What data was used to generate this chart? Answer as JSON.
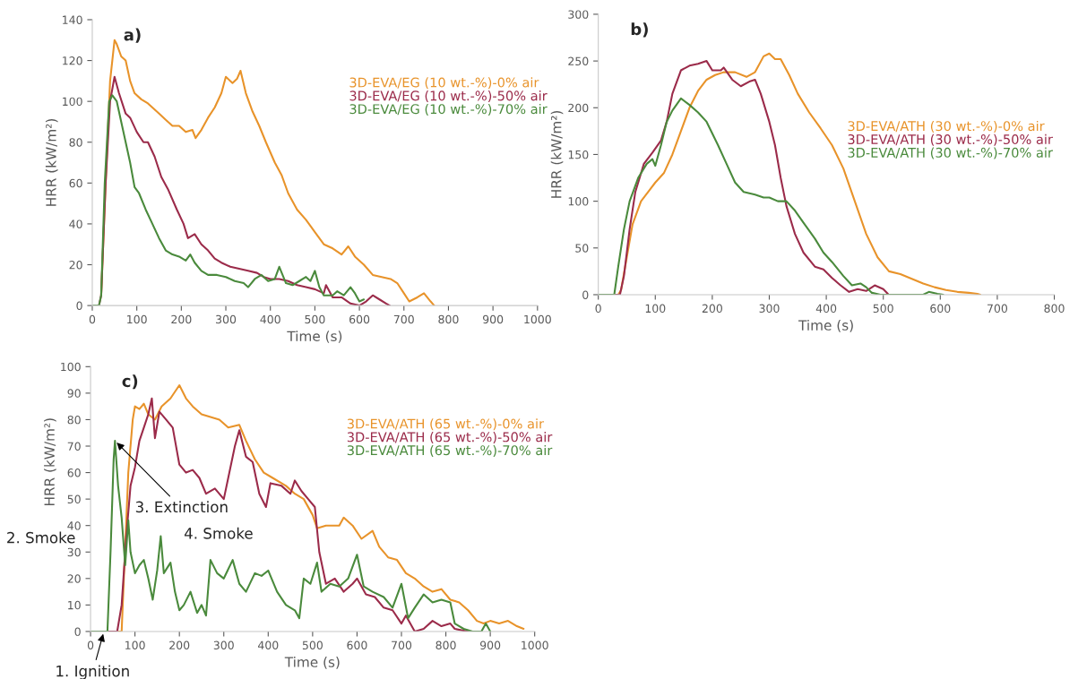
{
  "chart_data": [
    {
      "type": "line",
      "title": "a)",
      "xlabel": "Time (s)",
      "ylabel": "HRR (kW/m²)",
      "xlim": [
        0,
        1000
      ],
      "xticks": [
        0,
        100,
        200,
        300,
        400,
        500,
        600,
        700,
        800,
        900,
        1000
      ],
      "ylim": [
        0,
        140
      ],
      "yticks": [
        0,
        20,
        40,
        60,
        80,
        100,
        120,
        140
      ],
      "grid": false,
      "legend": "right",
      "series": [
        {
          "name": "3D-EVA/EG (10 wt.-%)-0% air",
          "color": "#e8932a",
          "x": [
            20,
            30,
            40,
            50,
            55,
            65,
            75,
            85,
            95,
            110,
            125,
            140,
            150,
            165,
            180,
            195,
            210,
            225,
            232,
            245,
            260,
            275,
            290,
            300,
            315,
            325,
            333,
            345,
            360,
            375,
            390,
            410,
            425,
            440,
            460,
            480,
            500,
            520,
            540,
            560,
            575,
            590,
            610,
            630,
            650,
            670,
            685,
            700,
            712,
            730,
            745,
            760,
            768
          ],
          "values": [
            5,
            60,
            110,
            130,
            128,
            122,
            120,
            110,
            104,
            101,
            99,
            96,
            94,
            91,
            88,
            88,
            85,
            86,
            82,
            86,
            92,
            97,
            104,
            112,
            109,
            111,
            115,
            104,
            95,
            88,
            80,
            70,
            64,
            55,
            47,
            42,
            36,
            30,
            28,
            25,
            29,
            24,
            20,
            15,
            14,
            13,
            11,
            6,
            2,
            4,
            6,
            2,
            0
          ]
        },
        {
          "name": "3D-EVA/EG (10 wt.-%)-50% air",
          "color": "#9b2b4a",
          "x": [
            0,
            15,
            20,
            30,
            40,
            50,
            60,
            75,
            85,
            100,
            115,
            125,
            140,
            155,
            170,
            190,
            205,
            215,
            230,
            245,
            260,
            275,
            290,
            310,
            330,
            350,
            370,
            385,
            400,
            420,
            440,
            460,
            480,
            500,
            520,
            525,
            540,
            560,
            580,
            600,
            615,
            630,
            645,
            660,
            668
          ],
          "values": [
            0,
            0,
            5,
            60,
            100,
            112,
            104,
            94,
            92,
            85,
            80,
            80,
            73,
            63,
            57,
            47,
            40,
            33,
            35,
            30,
            27,
            23,
            21,
            19,
            18,
            17,
            16,
            14,
            13,
            13,
            12,
            10,
            9,
            8,
            6,
            10,
            4,
            4,
            1,
            0,
            2,
            5,
            3,
            1,
            0
          ]
        },
        {
          "name": "3D-EVA/EG (10 wt.-%)-70% air",
          "color": "#4a8a3c",
          "x": [
            0,
            15,
            20,
            28,
            38,
            45,
            55,
            65,
            75,
            85,
            95,
            105,
            120,
            135,
            150,
            165,
            180,
            195,
            210,
            220,
            230,
            245,
            260,
            280,
            300,
            320,
            340,
            350,
            365,
            380,
            395,
            410,
            420,
            435,
            450,
            465,
            480,
            490,
            500,
            510,
            520,
            540,
            550,
            565,
            580,
            590,
            600,
            610
          ],
          "values": [
            0,
            0,
            5,
            60,
            100,
            103,
            100,
            90,
            80,
            70,
            58,
            55,
            47,
            40,
            33,
            27,
            25,
            24,
            22,
            25,
            21,
            17,
            15,
            15,
            14,
            12,
            11,
            9,
            13,
            15,
            12,
            13,
            19,
            11,
            10,
            12,
            14,
            12,
            17,
            9,
            5,
            5,
            7,
            5,
            9,
            6,
            2,
            3
          ]
        }
      ]
    },
    {
      "type": "line",
      "title": "b)",
      "xlabel": "Time (s)",
      "ylabel": "HRR (kW/m²)",
      "xlim": [
        0,
        800
      ],
      "xticks": [
        0,
        100,
        200,
        300,
        400,
        500,
        600,
        700,
        800
      ],
      "ylim": [
        0,
        300
      ],
      "yticks": [
        0,
        50,
        100,
        150,
        200,
        250,
        300
      ],
      "grid": false,
      "legend": "right",
      "series": [
        {
          "name": "3D-EVA/ATH (30 wt.-%)-0% air",
          "color": "#e8932a",
          "x": [
            0,
            35,
            40,
            50,
            60,
            75,
            90,
            100,
            115,
            130,
            145,
            160,
            175,
            190,
            205,
            220,
            240,
            260,
            275,
            290,
            300,
            310,
            320,
            335,
            350,
            370,
            390,
            410,
            430,
            450,
            470,
            490,
            510,
            530,
            550,
            570,
            590,
            610,
            630,
            650,
            665,
            670
          ],
          "values": [
            0,
            0,
            5,
            40,
            75,
            100,
            112,
            120,
            130,
            150,
            175,
            200,
            218,
            230,
            235,
            238,
            238,
            233,
            238,
            255,
            258,
            252,
            252,
            235,
            215,
            195,
            178,
            160,
            135,
            100,
            65,
            40,
            25,
            22,
            17,
            12,
            8,
            5,
            3,
            2,
            1,
            0
          ]
        },
        {
          "name": "3D-EVA/ATH (30 wt.-%)-50% air",
          "color": "#9b2b4a",
          "x": [
            0,
            38,
            45,
            55,
            65,
            80,
            95,
            110,
            120,
            130,
            145,
            160,
            175,
            190,
            200,
            215,
            220,
            235,
            250,
            265,
            275,
            285,
            300,
            310,
            320,
            330,
            345,
            360,
            380,
            395,
            410,
            425,
            440,
            455,
            470,
            485,
            500,
            508
          ],
          "values": [
            0,
            0,
            20,
            70,
            110,
            140,
            152,
            165,
            185,
            215,
            240,
            245,
            247,
            250,
            240,
            240,
            243,
            230,
            223,
            228,
            230,
            215,
            185,
            160,
            125,
            95,
            65,
            45,
            30,
            27,
            18,
            10,
            3,
            6,
            4,
            10,
            6,
            1
          ]
        },
        {
          "name": "3D-EVA/ATH (30 wt.-%)-70% air",
          "color": "#4a8a3c",
          "x": [
            0,
            28,
            35,
            45,
            55,
            70,
            85,
            95,
            100,
            110,
            120,
            130,
            145,
            160,
            175,
            190,
            210,
            225,
            240,
            255,
            275,
            290,
            300,
            315,
            330,
            345,
            360,
            380,
            395,
            410,
            430,
            445,
            460,
            470,
            480,
            495,
            570,
            580,
            595,
            605
          ],
          "values": [
            0,
            0,
            30,
            70,
            100,
            125,
            140,
            145,
            138,
            160,
            185,
            197,
            210,
            203,
            195,
            185,
            160,
            140,
            120,
            110,
            107,
            104,
            104,
            100,
            100,
            90,
            77,
            60,
            45,
            35,
            20,
            10,
            12,
            8,
            2,
            0,
            0,
            3,
            1,
            0
          ]
        }
      ]
    },
    {
      "type": "line",
      "title": "c)",
      "xlabel": "Time (s)",
      "ylabel": "HRR (kW/m²)",
      "xlim": [
        0,
        1000
      ],
      "xticks": [
        0,
        100,
        200,
        300,
        400,
        500,
        600,
        700,
        800,
        900,
        1000
      ],
      "ylim": [
        0,
        100
      ],
      "yticks": [
        0,
        10,
        20,
        30,
        40,
        50,
        60,
        70,
        80,
        90,
        100
      ],
      "grid": false,
      "legend": "right",
      "annotations": [
        {
          "text": "1. Ignition",
          "x": 30,
          "y": 0
        },
        "2. Smoke",
        {
          "text": "3. Extinction",
          "x": 55,
          "y": 72
        },
        "4. Smoke"
      ],
      "series": [
        {
          "name": "3D-EVA/ATH (65 wt.-%)-0% air",
          "color": "#e8932a",
          "x": [
            0,
            70,
            75,
            85,
            95,
            100,
            110,
            120,
            130,
            145,
            160,
            180,
            200,
            215,
            230,
            250,
            270,
            290,
            310,
            335,
            350,
            370,
            390,
            410,
            440,
            460,
            480,
            500,
            510,
            530,
            560,
            570,
            590,
            610,
            635,
            650,
            670,
            690,
            710,
            730,
            750,
            770,
            790,
            810,
            830,
            850,
            870,
            885,
            900,
            920,
            940,
            960,
            975
          ],
          "values": [
            0,
            0,
            20,
            60,
            80,
            85,
            84,
            86,
            82,
            80,
            85,
            88,
            93,
            88,
            85,
            82,
            81,
            80,
            77,
            78,
            72,
            65,
            60,
            58,
            55,
            52,
            50,
            44,
            39,
            40,
            40,
            43,
            40,
            35,
            38,
            32,
            28,
            27,
            22,
            20,
            17,
            15,
            16,
            12,
            11,
            8,
            4,
            3,
            4,
            3,
            4,
            2,
            1
          ]
        },
        {
          "name": "3D-EVA/ATH (65 wt.-%)-50% air",
          "color": "#9b2b4a",
          "x": [
            0,
            60,
            70,
            80,
            90,
            100,
            110,
            120,
            130,
            138,
            145,
            155,
            170,
            185,
            200,
            215,
            230,
            245,
            260,
            280,
            300,
            310,
            325,
            335,
            350,
            365,
            380,
            395,
            405,
            430,
            450,
            460,
            475,
            490,
            505,
            515,
            530,
            550,
            570,
            590,
            600,
            620,
            640,
            660,
            680,
            700,
            710,
            730,
            750,
            770,
            790,
            810,
            820,
            850
          ],
          "values": [
            0,
            0,
            10,
            35,
            55,
            62,
            72,
            77,
            82,
            88,
            73,
            83,
            80,
            77,
            63,
            60,
            61,
            58,
            52,
            54,
            50,
            58,
            70,
            76,
            66,
            64,
            52,
            47,
            56,
            55,
            52,
            57,
            53,
            50,
            47,
            30,
            18,
            20,
            15,
            18,
            20,
            14,
            13,
            9,
            8,
            3,
            6,
            0,
            1,
            4,
            2,
            3,
            1,
            0
          ]
        },
        {
          "name": "3D-EVA/ATH (65 wt.-%)-70% air",
          "color": "#4a8a3c",
          "x": [
            0,
            38,
            45,
            52,
            55,
            62,
            70,
            78,
            85,
            90,
            100,
            110,
            120,
            130,
            140,
            150,
            158,
            165,
            180,
            190,
            200,
            210,
            225,
            240,
            250,
            260,
            270,
            285,
            300,
            320,
            335,
            350,
            370,
            385,
            400,
            420,
            440,
            460,
            470,
            480,
            495,
            510,
            520,
            540,
            560,
            580,
            600,
            615,
            635,
            660,
            680,
            700,
            715,
            730,
            750,
            770,
            790,
            810,
            820,
            840,
            860,
            880,
            890,
            900
          ],
          "values": [
            0,
            0,
            30,
            65,
            72,
            55,
            43,
            25,
            42,
            30,
            22,
            25,
            27,
            20,
            12,
            23,
            36,
            22,
            26,
            15,
            8,
            10,
            15,
            7,
            10,
            6,
            27,
            22,
            20,
            27,
            18,
            15,
            22,
            21,
            23,
            15,
            10,
            8,
            5,
            20,
            18,
            26,
            15,
            18,
            17,
            20,
            29,
            17,
            15,
            13,
            9,
            18,
            5,
            9,
            14,
            11,
            12,
            11,
            3,
            1,
            0,
            0,
            3,
            0
          ]
        }
      ]
    }
  ]
}
